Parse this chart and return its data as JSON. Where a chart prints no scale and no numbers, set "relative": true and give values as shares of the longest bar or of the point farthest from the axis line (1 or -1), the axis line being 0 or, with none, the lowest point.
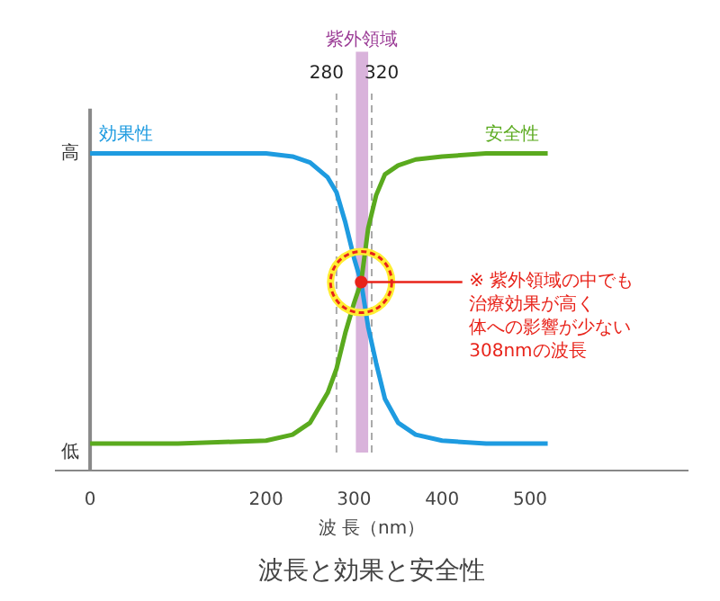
{
  "chart_data": {
    "type": "line",
    "title": "波長と効果と安全性",
    "xlabel": "波 長（nm）",
    "relative": true,
    "xlim": [
      -40,
      680
    ],
    "xticks": [
      0,
      200,
      300,
      400,
      500
    ],
    "marker": "none",
    "line_style": "solid",
    "series": [
      {
        "name": "効果性",
        "color": "#1e9be0",
        "x": [
          0,
          100,
          200,
          230,
          250,
          270,
          280,
          290,
          300,
          308,
          316,
          325,
          335,
          350,
          370,
          400,
          450,
          500,
          520
        ],
        "values": [
          1,
          1,
          1,
          0.99,
          0.97,
          0.92,
          0.87,
          0.77,
          0.65,
          0.57,
          0.42,
          0.3,
          0.18,
          0.1,
          0.06,
          0.04,
          0.03,
          0.03,
          0.03
        ]
      },
      {
        "name": "安全性",
        "color": "#5aaa1e",
        "x": [
          0,
          100,
          200,
          230,
          250,
          270,
          280,
          290,
          300,
          308,
          316,
          325,
          335,
          350,
          370,
          400,
          450,
          500,
          520
        ],
        "values": [
          0.03,
          0.03,
          0.04,
          0.06,
          0.1,
          0.2,
          0.28,
          0.4,
          0.5,
          0.57,
          0.75,
          0.86,
          0.93,
          0.96,
          0.98,
          0.99,
          1,
          1,
          1
        ]
      }
    ],
    "ref_lines": [
      {
        "axis": "x",
        "value": 280,
        "label": "280",
        "color": "#aaaaaa",
        "line_style": "dashed"
      },
      {
        "axis": "x",
        "value": 320,
        "label": "320",
        "color": "#aaaaaa",
        "line_style": "dashed"
      }
    ],
    "bands": [
      {
        "axis": "x",
        "from": 302,
        "to": 316,
        "label": "紫外領域",
        "color": "#d9b3db"
      }
    ],
    "annotations": [
      "高",
      "低",
      {
        "text": "※ 紫外領域の中でも",
        "x": 308,
        "y": 0.57
      },
      "治療効果が高く",
      "体への影響が少ない",
      "308nmの波長"
    ]
  }
}
